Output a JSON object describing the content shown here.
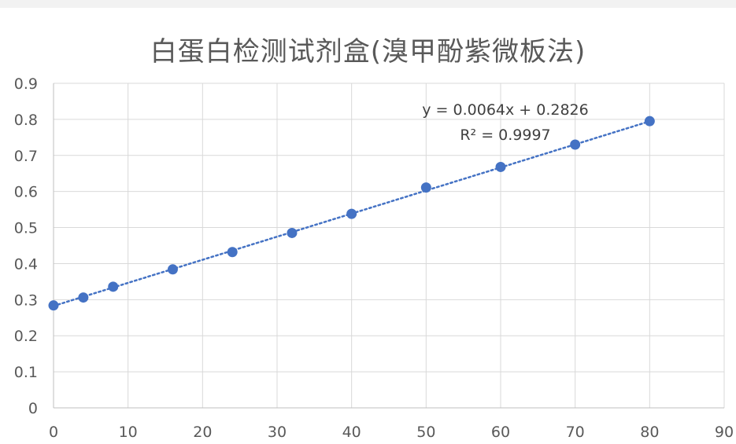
{
  "chart_data": {
    "type": "scatter",
    "title": "白蛋白检测试剂盒(溴甲酚紫微板法)",
    "xlabel": "",
    "ylabel": "",
    "xlim": [
      0,
      90
    ],
    "ylim": [
      0,
      0.9
    ],
    "x_ticks": [
      "0",
      "10",
      "20",
      "30",
      "40",
      "50",
      "60",
      "70",
      "80",
      "90"
    ],
    "y_ticks": [
      "0",
      "0.1",
      "0.2",
      "0.3",
      "0.4",
      "0.5",
      "0.6",
      "0.7",
      "0.8",
      "0.9"
    ],
    "grid": true,
    "legend": "none",
    "series": [
      {
        "color": "#4472c4",
        "x": [
          0,
          4,
          8,
          16,
          24,
          32,
          40,
          50,
          60,
          70,
          80
        ],
        "y": [
          0.284,
          0.306,
          0.336,
          0.384,
          0.432,
          0.485,
          0.538,
          0.611,
          0.668,
          0.73,
          0.795
        ]
      }
    ],
    "trendline": {
      "type": "linear",
      "style": "dotted",
      "color": "#4472c4",
      "slope": 0.0064,
      "intercept": 0.2826,
      "x_range": [
        0,
        80
      ],
      "equation_label": "y = 0.0064x + 0.2826",
      "r2_label": "R² = 0.9997"
    }
  }
}
